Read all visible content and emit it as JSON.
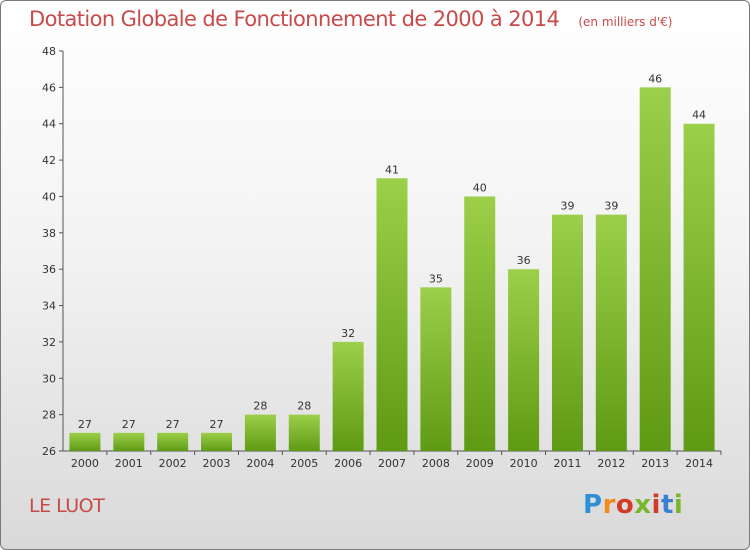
{
  "chart_data": {
    "type": "bar",
    "title": "Dotation Globale de Fonctionnement de 2000 à 2014",
    "subtitle": "(en milliers d'€)",
    "categories": [
      "2000",
      "2001",
      "2002",
      "2003",
      "2004",
      "2005",
      "2006",
      "2007",
      "2008",
      "2009",
      "2010",
      "2011",
      "2012",
      "2013",
      "2014"
    ],
    "values": [
      27,
      27,
      27,
      27,
      28,
      28,
      32,
      41,
      35,
      40,
      36,
      39,
      39,
      46,
      44
    ],
    "ylim": [
      26,
      48
    ],
    "yticks": [
      26,
      28,
      30,
      32,
      34,
      36,
      38,
      40,
      42,
      44,
      46,
      48
    ],
    "grid": false,
    "bar_color": "#6aa820"
  },
  "footer": {
    "commune": "LE LUOT",
    "logo_text": "Proxiti"
  }
}
